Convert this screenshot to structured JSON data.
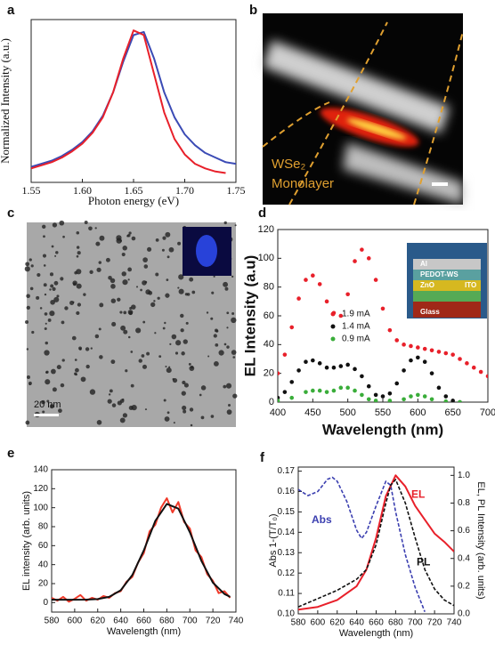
{
  "chart_data": [
    {
      "type": "line",
      "panel": "a",
      "xlabel": "Photon energy (eV)",
      "ylabel": "Normalized Intensity (a.u.)",
      "xlim": [
        1.55,
        1.75
      ],
      "xticks": [
        1.55,
        {
          "value": 1.6,
          "label": "1.60"
        },
        1.65,
        {
          "value": 1.7,
          "label": "1.70"
        },
        1.75
      ],
      "ylim": [
        0,
        1.05
      ],
      "series": [
        {
          "color": "#3b4bb5",
          "style": "line",
          "x": [
            1.55,
            1.56,
            1.57,
            1.58,
            1.59,
            1.6,
            1.61,
            1.62,
            1.63,
            1.64,
            1.65,
            1.66,
            1.67,
            1.68,
            1.69,
            1.7,
            1.71,
            1.72,
            1.73,
            1.74,
            1.75
          ],
          "values": [
            0.1,
            0.12,
            0.14,
            0.17,
            0.21,
            0.26,
            0.33,
            0.43,
            0.58,
            0.78,
            0.95,
            0.97,
            0.8,
            0.58,
            0.42,
            0.31,
            0.24,
            0.19,
            0.16,
            0.13,
            0.12
          ]
        },
        {
          "color": "#e8202a",
          "style": "line",
          "x": [
            1.55,
            1.56,
            1.57,
            1.58,
            1.59,
            1.6,
            1.61,
            1.62,
            1.63,
            1.64,
            1.65,
            1.66,
            1.67,
            1.68,
            1.69,
            1.7,
            1.71,
            1.72,
            1.73,
            1.74
          ],
          "values": [
            0.09,
            0.11,
            0.13,
            0.16,
            0.2,
            0.25,
            0.32,
            0.42,
            0.58,
            0.8,
            0.98,
            0.95,
            0.7,
            0.45,
            0.28,
            0.18,
            0.12,
            0.09,
            0.07,
            0.06
          ]
        }
      ]
    },
    {
      "type": "image",
      "panel": "b",
      "annotations": [
        "WSe₂",
        "Monolayer"
      ]
    },
    {
      "type": "image",
      "panel": "c",
      "annotations": [
        "20 nm"
      ]
    },
    {
      "type": "line",
      "panel": "d",
      "xlabel": "Wavelength (nm)",
      "ylabel": "EL Intensity (a.u)",
      "xlim": [
        400,
        700
      ],
      "xticks": [
        400,
        450,
        500,
        550,
        600,
        650,
        700
      ],
      "ylim": [
        0,
        120
      ],
      "yticks": [
        0,
        20,
        40,
        60,
        80,
        100,
        120
      ],
      "inset_labels": [
        "Al",
        "PEDOT-WS",
        "ZnO",
        "ITO",
        "Glass"
      ],
      "series": [
        {
          "name": "1.9 mA",
          "color": "#e8202a",
          "style": "dots",
          "x": [
            400,
            410,
            420,
            430,
            440,
            450,
            460,
            470,
            480,
            490,
            500,
            510,
            520,
            530,
            540,
            550,
            560,
            570,
            580,
            590,
            600,
            610,
            620,
            630,
            640,
            650,
            660,
            670,
            680,
            690,
            700
          ],
          "values": [
            20,
            33,
            52,
            72,
            85,
            88,
            82,
            70,
            62,
            60,
            75,
            98,
            106,
            100,
            85,
            65,
            50,
            43,
            40,
            39,
            38,
            37,
            36,
            35,
            34,
            33,
            30,
            27,
            24,
            21,
            18
          ]
        },
        {
          "name": "1.4 mA",
          "color": "#111111",
          "style": "dots",
          "x": [
            400,
            410,
            420,
            430,
            440,
            450,
            460,
            470,
            480,
            490,
            500,
            510,
            520,
            530,
            540,
            550,
            560,
            570,
            580,
            590,
            600,
            610,
            620,
            630,
            640,
            650,
            660
          ],
          "values": [
            3,
            7,
            14,
            22,
            28,
            29,
            27,
            24,
            24,
            25,
            26,
            23,
            18,
            11,
            5,
            4,
            6,
            13,
            22,
            29,
            31,
            28,
            20,
            10,
            4,
            1,
            0
          ]
        },
        {
          "name": "0.9 mA",
          "color": "#3aad3a",
          "style": "dots",
          "x": [
            400,
            420,
            440,
            450,
            460,
            470,
            480,
            490,
            500,
            510,
            520,
            530,
            540,
            560,
            580,
            590,
            600,
            610,
            620,
            640,
            660
          ],
          "values": [
            1,
            3,
            7,
            8,
            8,
            7,
            8,
            10,
            10,
            8,
            5,
            2,
            1,
            1,
            2,
            4,
            5,
            4,
            2,
            0.5,
            0
          ]
        }
      ]
    },
    {
      "type": "line",
      "panel": "e",
      "xlabel": "Wavelength (nm)",
      "ylabel": "EL intensity (arb. units)",
      "xlim": [
        580,
        740
      ],
      "xticks": [
        580,
        600,
        620,
        640,
        660,
        680,
        700,
        720,
        740
      ],
      "ylim": [
        -10,
        140
      ],
      "yticks": [
        0,
        20,
        40,
        60,
        80,
        100,
        120,
        140
      ],
      "series": [
        {
          "color": "#f03a2a",
          "style": "line",
          "x": [
            580,
            585,
            590,
            595,
            600,
            605,
            610,
            615,
            620,
            625,
            630,
            635,
            640,
            645,
            650,
            655,
            660,
            665,
            670,
            675,
            680,
            685,
            690,
            695,
            700,
            705,
            710,
            715,
            720,
            725,
            730,
            735
          ],
          "values": [
            5,
            2,
            6,
            1,
            4,
            8,
            2,
            5,
            3,
            7,
            5,
            10,
            12,
            22,
            27,
            42,
            52,
            75,
            82,
            100,
            110,
            95,
            106,
            85,
            78,
            55,
            48,
            30,
            23,
            10,
            12,
            5
          ]
        },
        {
          "color": "#111111",
          "style": "line",
          "x": [
            580,
            600,
            610,
            620,
            630,
            640,
            650,
            660,
            670,
            680,
            690,
            700,
            710,
            720,
            730,
            735
          ],
          "values": [
            3,
            3,
            3.1,
            3.7,
            6,
            13,
            29,
            55,
            86,
            104,
            99,
            74,
            44,
            21,
            9,
            6
          ]
        }
      ]
    },
    {
      "type": "line",
      "panel": "f",
      "xlabel": "Wavelength (nm)",
      "ylabel": "Abs 1-(T/T₀)",
      "y2label": "EL, PL Intensity (arb. units)",
      "xlim": [
        580,
        740
      ],
      "xticks": [
        580,
        600,
        620,
        640,
        660,
        680,
        700,
        720,
        740
      ],
      "ylim": [
        0.1,
        0.172
      ],
      "yticks": [
        {
          "value": 0.1,
          "label": "0.10"
        },
        0.11,
        0.12,
        0.13,
        0.14,
        0.15,
        0.16,
        0.17
      ],
      "y2lim": [
        0,
        1.06
      ],
      "y2ticks": [
        {
          "value": 0,
          "label": "0.0"
        },
        0.2,
        0.4,
        0.6,
        0.8,
        {
          "value": 1,
          "label": "1.0"
        }
      ],
      "series": [
        {
          "name": "Abs",
          "color": "#3b3fb0",
          "style": "dashed",
          "x": [
            580,
            590,
            600,
            610,
            615,
            620,
            630,
            640,
            645,
            650,
            660,
            670,
            675,
            680,
            690,
            700,
            710
          ],
          "values": [
            0.161,
            0.158,
            0.16,
            0.166,
            0.167,
            0.165,
            0.155,
            0.141,
            0.137,
            0.14,
            0.153,
            0.165,
            0.163,
            0.15,
            0.129,
            0.113,
            0.101
          ]
        },
        {
          "name": "EL",
          "color": "#e8202a",
          "style": "line",
          "axis": "y2",
          "x": [
            580,
            600,
            620,
            640,
            650,
            660,
            670,
            680,
            690,
            700,
            710,
            720,
            730,
            740
          ],
          "values": [
            0.03,
            0.05,
            0.1,
            0.2,
            0.32,
            0.55,
            0.85,
            1.0,
            0.92,
            0.78,
            0.68,
            0.58,
            0.52,
            0.45
          ]
        },
        {
          "name": "PL",
          "color": "#111111",
          "style": "dashed",
          "axis": "y2",
          "x": [
            580,
            600,
            620,
            640,
            650,
            660,
            670,
            675,
            680,
            690,
            700,
            710,
            720,
            730,
            740
          ],
          "values": [
            0.05,
            0.11,
            0.17,
            0.25,
            0.32,
            0.5,
            0.8,
            0.93,
            0.97,
            0.8,
            0.55,
            0.32,
            0.18,
            0.1,
            0.06
          ]
        }
      ]
    }
  ]
}
